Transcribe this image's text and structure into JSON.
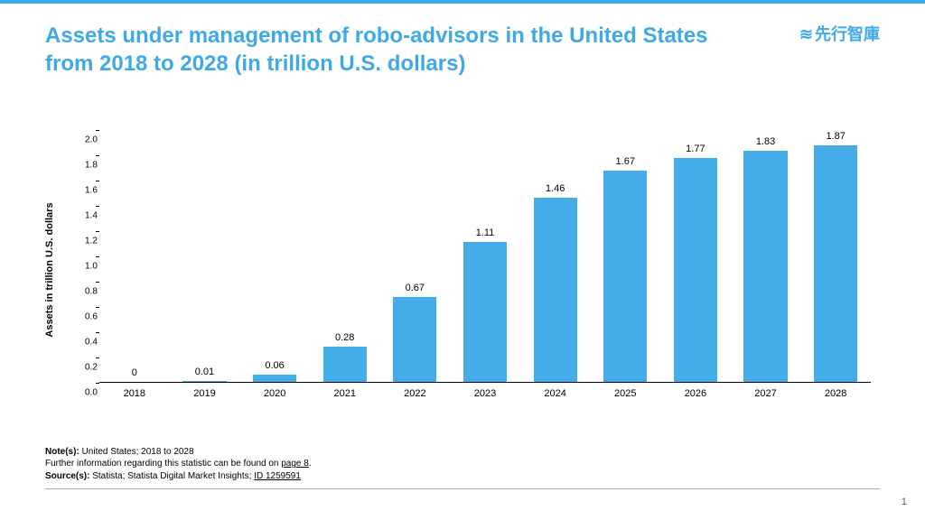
{
  "header": {
    "title": "Assets under management of robo-advisors in the United States from 2018 to 2028 (in trillion U.S. dollars)",
    "logo_text": "先行智庫",
    "title_color": "#3fa9e6"
  },
  "chart": {
    "type": "bar",
    "ylabel": "Assets in trillion U.S. dollars",
    "categories": [
      "2018",
      "2019",
      "2020",
      "2021",
      "2022",
      "2023",
      "2024",
      "2025",
      "2026",
      "2027",
      "2028"
    ],
    "values": [
      0,
      0.01,
      0.06,
      0.28,
      0.67,
      1.11,
      1.46,
      1.67,
      1.77,
      1.83,
      1.87
    ],
    "value_labels": [
      "0",
      "0.01",
      "0.06",
      "0.28",
      "0.67",
      "1.11",
      "1.46",
      "1.67",
      "1.77",
      "1.83",
      "1.87"
    ],
    "ylim": [
      0.0,
      2.0
    ],
    "ytick_step": 0.2,
    "yticks": [
      "0.0",
      "0.2",
      "0.4",
      "0.6",
      "0.8",
      "1.0",
      "1.2",
      "1.4",
      "1.6",
      "1.8",
      "2.0"
    ],
    "bar_color": "#44ace8",
    "bar_width_ratio": 0.62,
    "background_color": "#ffffff",
    "axis_color": "#000000",
    "label_fontsize": 11,
    "ylabel_fontsize": 11,
    "tick_fontsize": 10
  },
  "footer": {
    "note_label": "Note(s):",
    "note_text": " United States; 2018 to 2028",
    "further_prefix": "Further information regarding this statistic can be found on ",
    "further_link": "page 8",
    "further_suffix": ".",
    "source_label": "Source(s):",
    "source_text_prefix": " Statista; Statista Digital Market Insights; ",
    "source_id": "ID 1259591"
  },
  "page_number": "1"
}
